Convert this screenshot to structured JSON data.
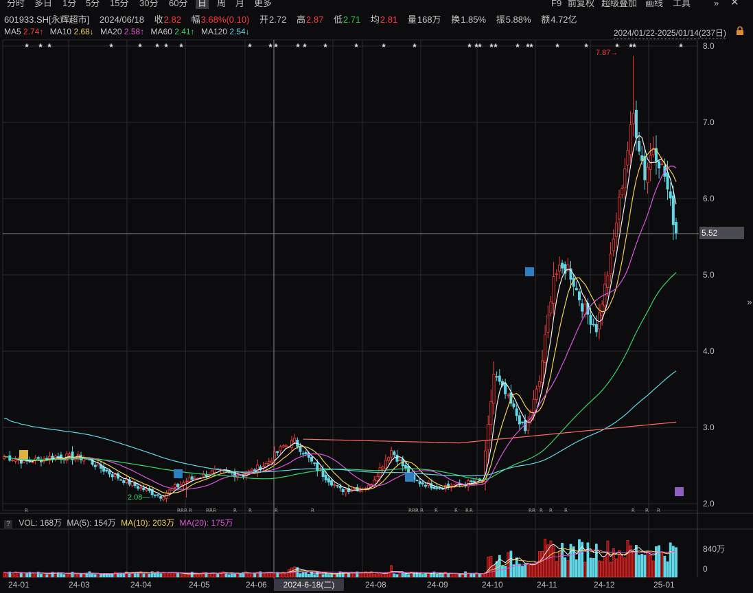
{
  "toolbar": {
    "periods": [
      "分时",
      "多日",
      "1分",
      "5分",
      "15分",
      "30分",
      "60分",
      "日",
      "周",
      "月",
      "更多"
    ],
    "active_period": "日",
    "tools": [
      "F9",
      "前复权",
      "超级叠加",
      "画线",
      "工具",
      "»"
    ]
  },
  "quote": {
    "code": "601933.SH[永辉超市]",
    "date": "2024/06/18",
    "close_label": "收",
    "close": "2.82",
    "amp_label": "幅",
    "change": "3.68%(0.10)",
    "open_label": "开",
    "open": "2.72",
    "high_label": "高",
    "high": "2.87",
    "low_label": "低",
    "low": "2.71",
    "avg_label": "均",
    "avg": "2.81",
    "vol_label": "量",
    "volume": "168万",
    "turn_label": "换",
    "turnover": "1.85%",
    "swing_label": "振",
    "swing": "5.88%",
    "amt_label": "额",
    "amount": "4.72亿"
  },
  "ma": {
    "ma5_label": "MA5",
    "ma5": "2.74↑",
    "ma10_label": "MA10",
    "ma10": "2.68↓",
    "ma20_label": "MA20",
    "ma20": "2.58↑",
    "ma60_label": "MA60",
    "ma60": "2.41↑",
    "ma120_label": "MA120",
    "ma120": "2.54↓"
  },
  "range_label": "2024/01/22-2025/01/14(237日)",
  "volume": {
    "vol_label": "VOL:",
    "vol": "168万",
    "ma5_label": "MA(5):",
    "ma5": "154万",
    "ma10_label": "MA(10):",
    "ma10": "203万",
    "ma20_label": "MA(20):",
    "ma20": "175万",
    "axis_labels": [
      "840万",
      "0"
    ]
  },
  "cursor": {
    "date_label": "2024-6-18(二)",
    "price_label": "5.52"
  },
  "annotations": {
    "max_label": "7.87",
    "min_label": "2.08"
  },
  "colors": {
    "up": "#ff3b3b",
    "down": "#5fd7e6",
    "ma5": "#f2f2f2",
    "ma10": "#f2d34f",
    "ma20": "#e055e0",
    "ma60": "#34d66b",
    "ma120": "#5fd7e6",
    "ma250": "#ff6b6b",
    "grid": "#2a2a2e",
    "bg": "#0c0c0e"
  },
  "chart_data": {
    "type": "candlestick",
    "price_axis": {
      "ylim": [
        2.0,
        8.0
      ],
      "ticks": [
        2.0,
        3.0,
        4.0,
        5.0,
        6.0,
        7.0,
        8.0
      ]
    },
    "x_tick_labels": [
      "24-01",
      "24-03",
      "24-04",
      "24-05",
      "24-06",
      "24-08",
      "24-09",
      "24-10",
      "24-11",
      "24-12",
      "25-01"
    ],
    "ohlc_close_approx": [
      [
        "2024-01-22",
        2.62
      ],
      [
        "2024-02-01",
        2.55
      ],
      [
        "2024-02-20",
        2.62
      ],
      [
        "2024-03-05",
        2.6
      ],
      [
        "2024-03-20",
        2.38
      ],
      [
        "2024-04-02",
        2.22
      ],
      [
        "2024-04-12",
        2.1
      ],
      [
        "2024-04-25",
        2.3
      ],
      [
        "2024-05-10",
        2.42
      ],
      [
        "2024-05-24",
        2.38
      ],
      [
        "2024-06-04",
        2.52
      ],
      [
        "2024-06-12",
        2.75
      ],
      [
        "2024-06-18",
        2.82
      ],
      [
        "2024-06-28",
        2.45
      ],
      [
        "2024-07-10",
        2.18
      ],
      [
        "2024-07-25",
        2.22
      ],
      [
        "2024-08-05",
        2.7
      ],
      [
        "2024-08-16",
        2.3
      ],
      [
        "2024-08-30",
        2.22
      ],
      [
        "2024-09-12",
        2.25
      ],
      [
        "2024-09-24",
        2.3
      ],
      [
        "2024-09-30",
        3.7
      ],
      [
        "2024-10-10",
        3.3
      ],
      [
        "2024-10-18",
        2.95
      ],
      [
        "2024-10-25",
        3.6
      ],
      [
        "2024-11-01",
        5.0
      ],
      [
        "2024-11-08",
        5.1
      ],
      [
        "2024-11-15",
        4.6
      ],
      [
        "2024-11-25",
        4.3
      ],
      [
        "2024-12-02",
        5.2
      ],
      [
        "2024-12-06",
        6.2
      ],
      [
        "2024-12-13",
        7.1
      ],
      [
        "2024-12-20",
        6.3
      ],
      [
        "2024-12-27",
        6.7
      ],
      [
        "2025-01-06",
        6.3
      ],
      [
        "2025-01-14",
        5.55
      ]
    ],
    "max_price": 7.87,
    "min_price": 2.08,
    "volume_axis": {
      "ylim": [
        0,
        1400
      ],
      "unit": "万"
    }
  }
}
